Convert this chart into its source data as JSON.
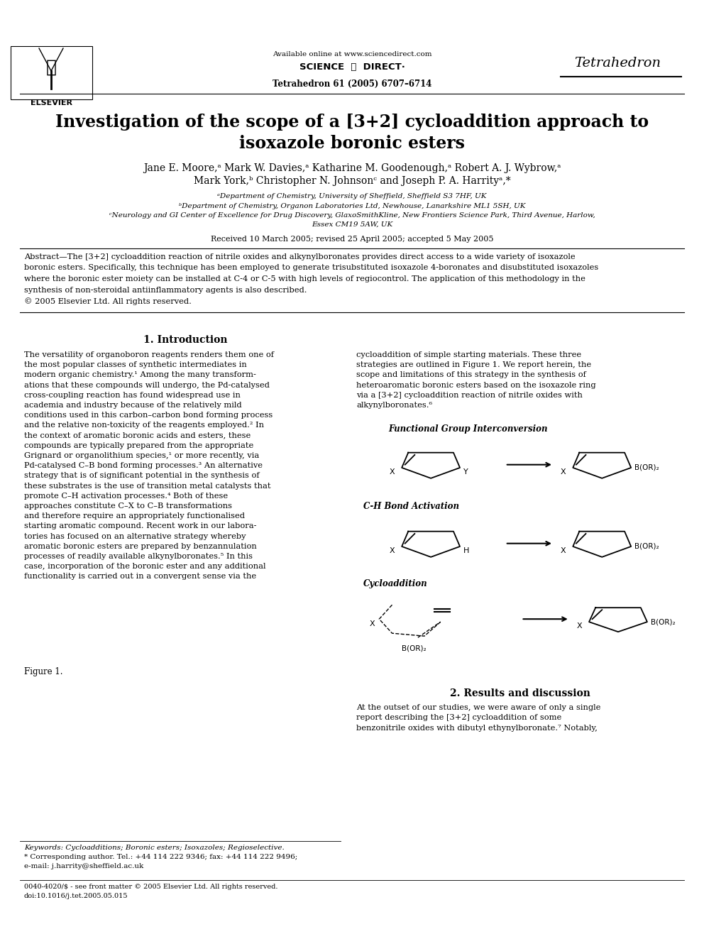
{
  "bg_color": "#ffffff",
  "page_width": 9.92,
  "page_height": 13.23,
  "header_available": "Available online at www.sciencedirect.com",
  "header_sd": "SCIENCE  ⓐ  DIRECT·",
  "header_journal_vol": "Tetrahedron 61 (2005) 6707–6714",
  "header_journal_name": "Tetrahedron",
  "title_line1": "Investigation of the scope of a [3+2] cycloaddition approach to",
  "title_line2": "isoxazole boronic esters",
  "authors1": "Jane E. Moore,ᵃ Mark W. Davies,ᵃ Katharine M. Goodenough,ᵃ Robert A. J. Wybrow,ᵃ",
  "authors2": "Mark York,ᵇ Christopher N. Johnsonᶜ and Joseph P. A. Harrityᵃ,*",
  "affil_a": "ᵃDepartment of Chemistry, University of Sheffield, Sheffield S3 7HF, UK",
  "affil_b": "ᵇDepartment of Chemistry, Organon Laboratories Ltd, Newhouse, Lanarkshire ML1 5SH, UK",
  "affil_c1": "ᶜNeurology and GI Center of Excellence for Drug Discovery, GlaxoSmithKline, New Frontiers Science Park, Third Avenue, Harlow,",
  "affil_c2": "Essex CM19 5AW, UK",
  "received": "Received 10 March 2005; revised 25 April 2005; accepted 5 May 2005",
  "abstract_line1": "Abstract—The [3+2] cycloaddition reaction of nitrile oxides and alkynylboronates provides direct access to a wide variety of isoxazole",
  "abstract_line2": "boronic esters. Specifically, this technique has been employed to generate trisubstituted isoxazole 4-boronates and disubstituted isoxazoles",
  "abstract_line3": "where the boronic ester moiety can be installed at C-4 or C-5 with high levels of regiocontrol. The application of this methodology in the",
  "abstract_line4": "synthesis of non-steroidal antiinflammatory agents is also described.",
  "abstract_copy": "© 2005 Elsevier Ltd. All rights reserved.",
  "sec1_title": "1. Introduction",
  "left_col": [
    "The versatility of organoboron reagents renders them one of",
    "the most popular classes of synthetic intermediates in",
    "modern organic chemistry.¹ Among the many transform-",
    "ations that these compounds will undergo, the Pd-catalysed",
    "cross-coupling reaction has found widespread use in",
    "academia and industry because of the relatively mild",
    "conditions used in this carbon–carbon bond forming process",
    "and the relative non-toxicity of the reagents employed.² In",
    "the context of aromatic boronic acids and esters, these",
    "compounds are typically prepared from the appropriate",
    "Grignard or organolithium species,¹ or more recently, via",
    "Pd-catalysed C–B bond forming processes.³ An alternative",
    "strategy that is of significant potential in the synthesis of",
    "these substrates is the use of transition metal catalysts that",
    "promote C–H activation processes.⁴ Both of these",
    "approaches constitute C–X to C–B transformations",
    "and therefore require an appropriately functionalised",
    "starting aromatic compound. Recent work in our labora-",
    "tories has focused on an alternative strategy whereby",
    "aromatic boronic esters are prepared by benzannulation",
    "processes of readily available alkynylboronates.⁵ In this",
    "case, incorporation of the boronic ester and any additional",
    "functionality is carried out in a convergent sense via the"
  ],
  "right_col_top": [
    "cycloaddition of simple starting materials. These three",
    "strategies are outlined in Figure 1. We report herein, the",
    "scope and limitations of this strategy in the synthesis of",
    "heteroaromatic boronic esters based on the isoxazole ring",
    "via a [3+2] cycloaddition reaction of nitrile oxides with",
    "alkynylboronates.⁶"
  ],
  "fig1_lbl1": "Functional Group Interconversion",
  "fig1_lbl2": "C-H Bond Activation",
  "fig1_lbl3": "Cycloaddition",
  "fig1_caption": "Figure 1.",
  "sec2_title": "2. Results and discussion",
  "sec2_text": [
    "At the outset of our studies, we were aware of only a single",
    "report describing the [3+2] cycloaddition of some",
    "benzonitrile oxides with dibutyl ethynylboronate.⁷ Notably,"
  ],
  "kw": "Keywords: Cycloadditions; Boronic esters; Isoxazoles; Regioselective.",
  "corr1": "* Corresponding author. Tel.: +44 114 222 9346; fax: +44 114 222 9496;",
  "corr2": "e-mail: j.harrity@sheffield.ac.uk",
  "foot1": "0040-4020/$ - see front matter © 2005 Elsevier Ltd. All rights reserved.",
  "foot2": "doi:10.1016/j.tet.2005.05.015"
}
